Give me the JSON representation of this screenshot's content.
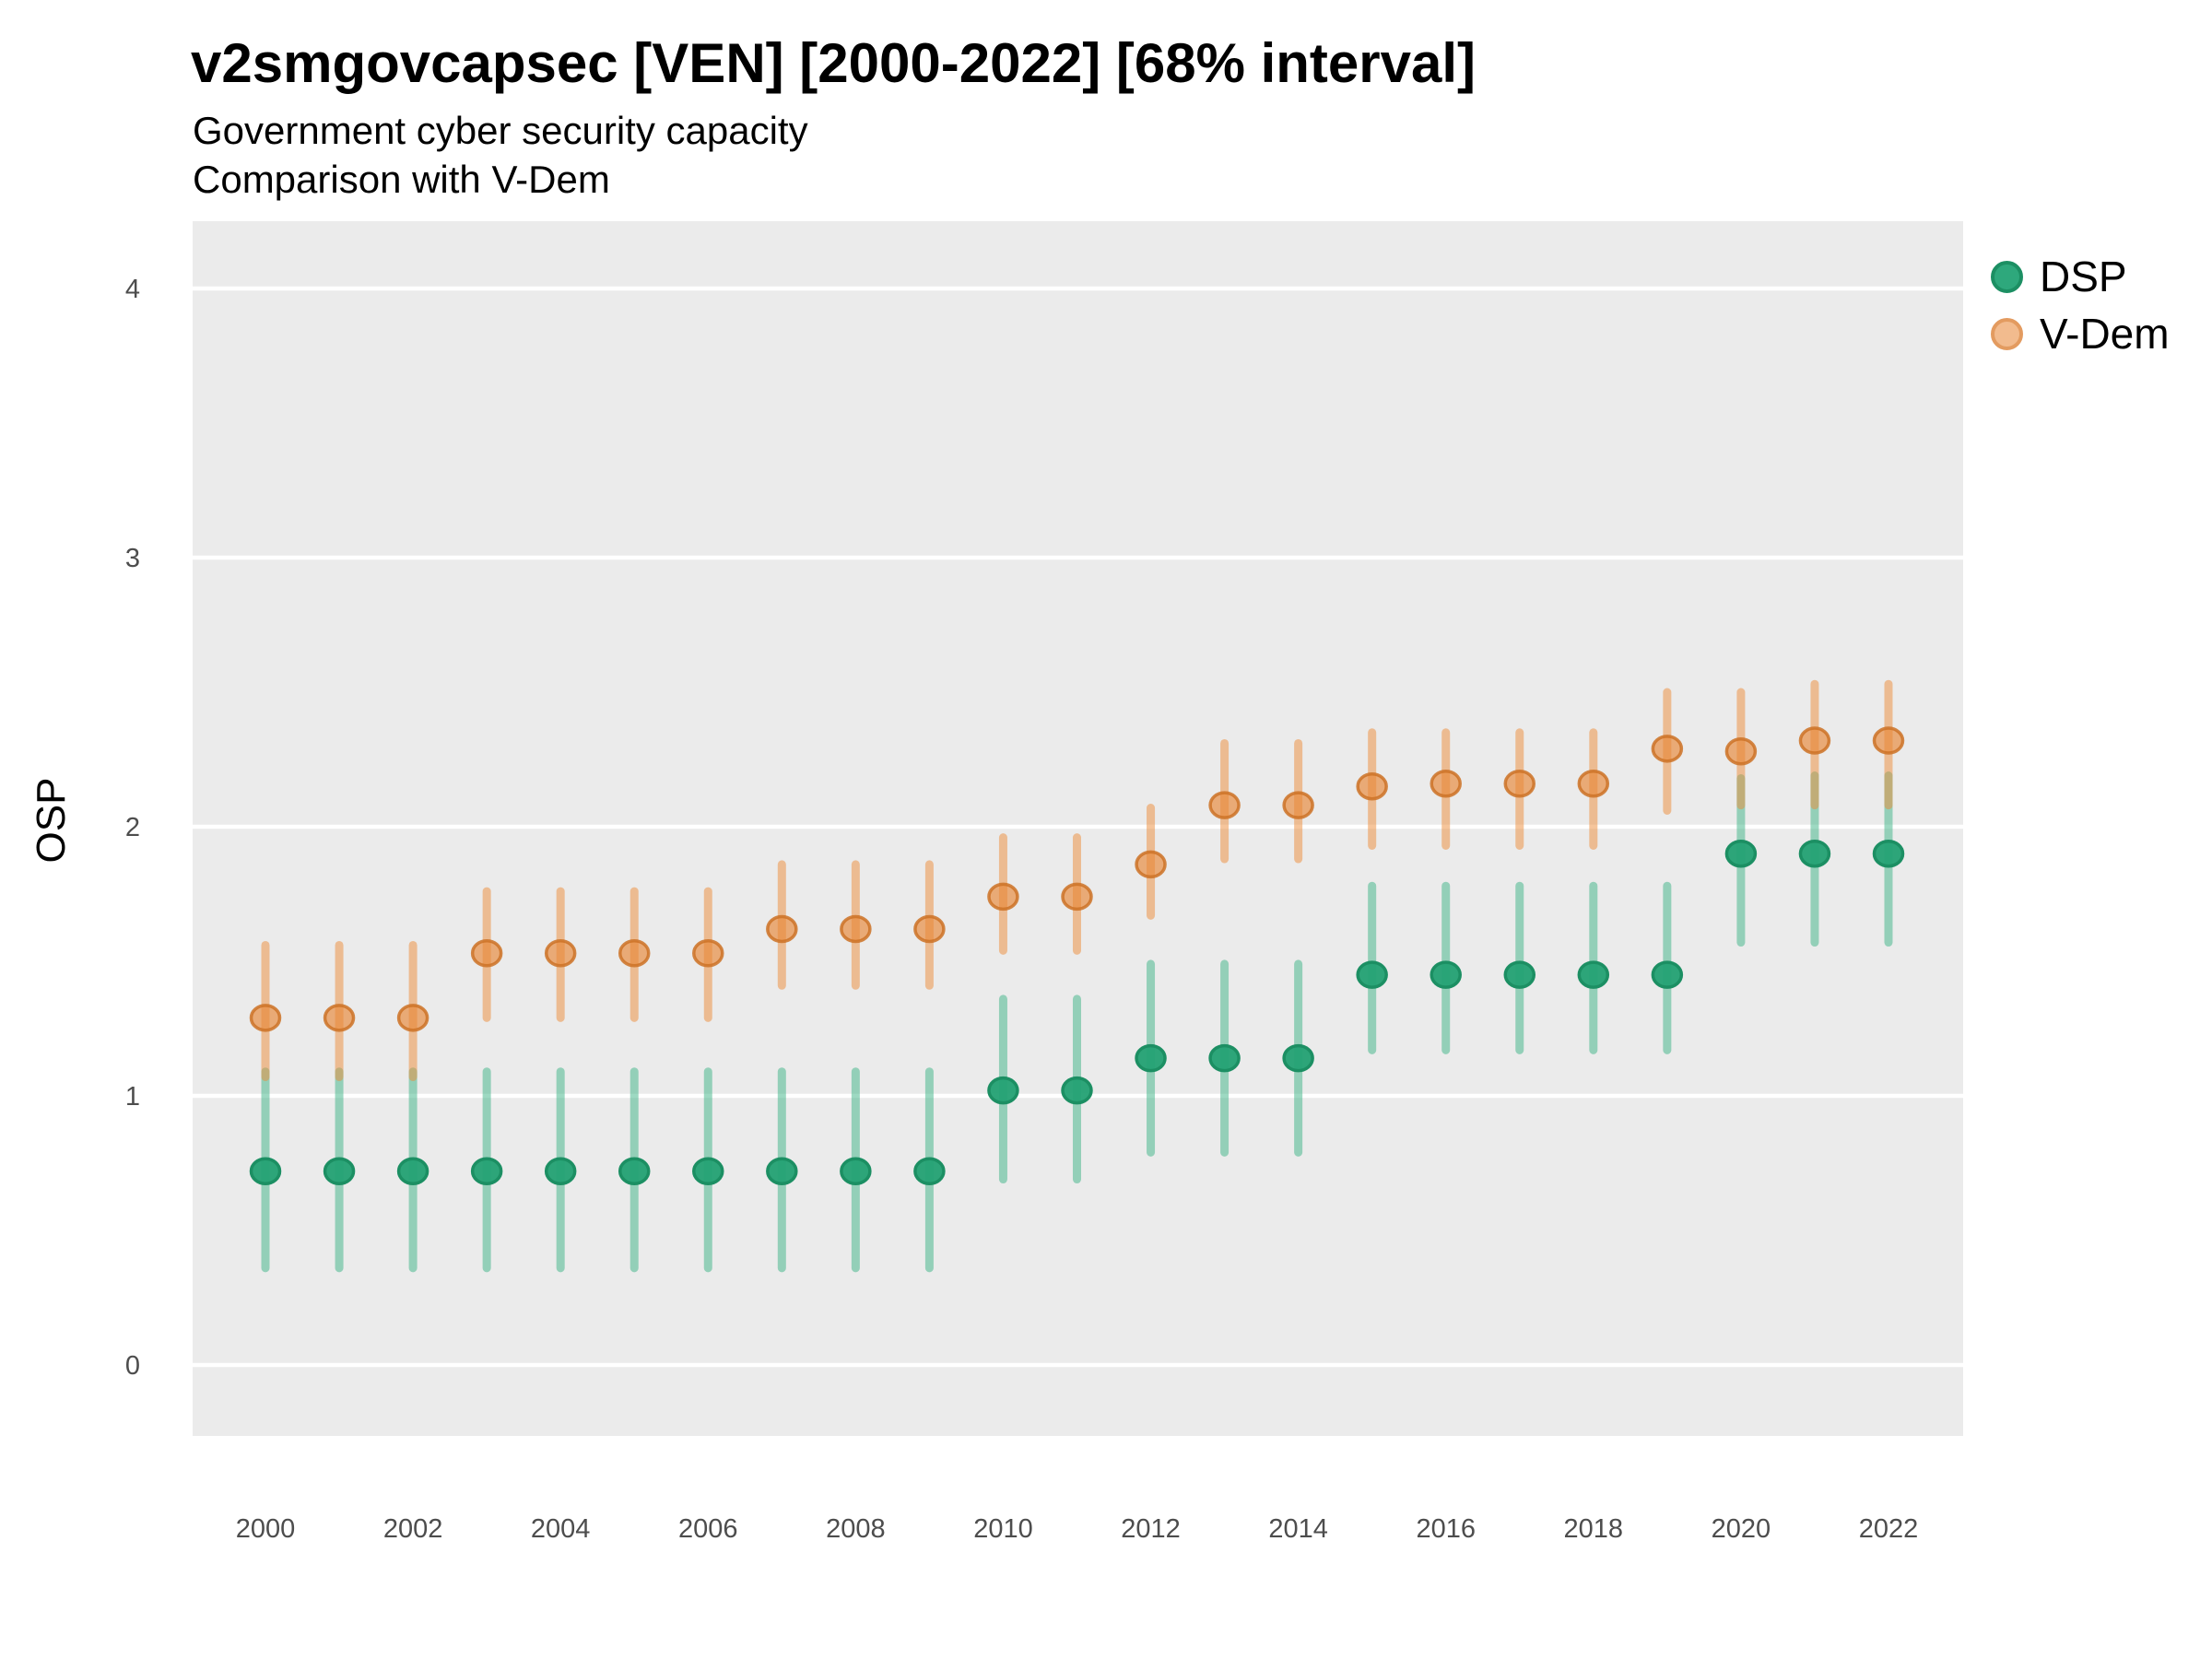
{
  "title": "v2smgovcapsec [VEN] [2000-2022] [68% interval]",
  "subtitle_line1": "Government cyber security capacity",
  "subtitle_line2": "Comparison with V-Dem",
  "y_axis_title": "OSP",
  "legend": {
    "items": [
      {
        "label": "DSP"
      },
      {
        "label": "V-Dem"
      }
    ]
  },
  "colors": {
    "panel_bg": "#ebebeb",
    "gridline": "#ffffff",
    "tick_label": "#4d4d4d",
    "title_color": "#000000",
    "dsp_point_fill": "#23a173",
    "dsp_point_stroke": "#1c8f63",
    "dsp_bar": "rgba(60,179,133,0.5)",
    "vdem_point_fill": "rgba(232,135,55,0.65)",
    "vdem_point_stroke": "rgba(204,114,38,0.85)",
    "vdem_bar": "rgba(238,140,56,0.5)",
    "legend_dsp_fill": "#2ea87c",
    "legend_dsp_stroke": "#1c8f63",
    "legend_vdem_fill": "#f2bb8e",
    "legend_vdem_stroke": "#e39b60"
  },
  "chart_data": {
    "type": "scatter",
    "title": "v2smgovcapsec [VEN] [2000-2022] [68% interval]",
    "subtitle": [
      "Government cyber security capacity",
      "Comparison with V-Dem"
    ],
    "ylabel": "OSP",
    "xlabel": "",
    "interval": "68%",
    "grid": "major-horizontal-white-on-grey",
    "legend_position": "right-top",
    "x": [
      2000,
      2001,
      2002,
      2003,
      2004,
      2005,
      2006,
      2007,
      2008,
      2009,
      2010,
      2011,
      2012,
      2013,
      2014,
      2015,
      2016,
      2017,
      2018,
      2019,
      2020,
      2021,
      2022
    ],
    "x_tick_years": [
      2000,
      2002,
      2004,
      2006,
      2008,
      2010,
      2012,
      2014,
      2016,
      2018,
      2020,
      2022
    ],
    "x_tick_labels": [
      "2000",
      "2002",
      "2004",
      "2006",
      "2008",
      "2010",
      "2012",
      "2014",
      "2016",
      "2018",
      "2020",
      "2022"
    ],
    "y_ticks": [
      0,
      1,
      2,
      3,
      4
    ],
    "y_tick_labels": [
      "0",
      "1",
      "2",
      "3",
      "4"
    ],
    "ylim": [
      -0.26,
      4.25
    ],
    "series": [
      {
        "name": "DSP",
        "values": [
          0.72,
          0.72,
          0.72,
          0.72,
          0.72,
          0.72,
          0.72,
          0.72,
          0.72,
          0.72,
          1.02,
          1.02,
          1.14,
          1.14,
          1.14,
          1.45,
          1.45,
          1.45,
          1.45,
          1.45,
          1.9,
          1.9,
          1.9
        ],
        "lower": [
          0.36,
          0.36,
          0.36,
          0.36,
          0.36,
          0.36,
          0.36,
          0.36,
          0.36,
          0.36,
          0.69,
          0.69,
          0.79,
          0.79,
          0.79,
          1.17,
          1.17,
          1.17,
          1.17,
          1.17,
          1.57,
          1.57,
          1.57
        ],
        "upper": [
          1.09,
          1.09,
          1.09,
          1.09,
          1.09,
          1.09,
          1.09,
          1.09,
          1.09,
          1.09,
          1.36,
          1.36,
          1.49,
          1.49,
          1.49,
          1.78,
          1.78,
          1.78,
          1.78,
          1.78,
          2.18,
          2.19,
          2.19
        ]
      },
      {
        "name": "V-Dem",
        "values": [
          1.29,
          1.29,
          1.29,
          1.53,
          1.53,
          1.53,
          1.53,
          1.62,
          1.62,
          1.62,
          1.74,
          1.74,
          1.86,
          2.08,
          2.08,
          2.15,
          2.16,
          2.16,
          2.16,
          2.29,
          2.28,
          2.32,
          2.32
        ],
        "lower": [
          1.07,
          1.07,
          1.07,
          1.29,
          1.29,
          1.29,
          1.29,
          1.41,
          1.41,
          1.41,
          1.54,
          1.54,
          1.67,
          1.88,
          1.88,
          1.93,
          1.93,
          1.93,
          1.93,
          2.06,
          2.08,
          2.08,
          2.08
        ],
        "upper": [
          1.56,
          1.56,
          1.56,
          1.76,
          1.76,
          1.76,
          1.76,
          1.86,
          1.86,
          1.86,
          1.96,
          1.96,
          2.07,
          2.31,
          2.31,
          2.35,
          2.35,
          2.35,
          2.35,
          2.5,
          2.5,
          2.53,
          2.53
        ]
      }
    ]
  }
}
